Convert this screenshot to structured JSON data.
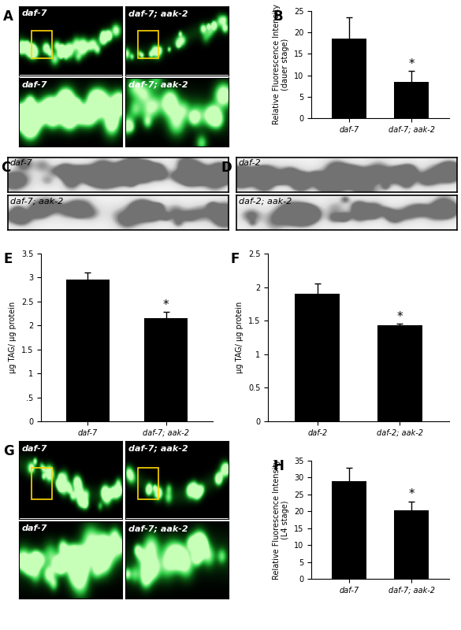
{
  "image_panels": [
    {
      "panel": "A",
      "type": "fluorescence",
      "images": [
        "daf-7",
        "daf-7; aak-2",
        "daf-7",
        "daf-7; aak-2"
      ]
    },
    {
      "panel": "C",
      "type": "brightfield",
      "images": [
        "daf-7",
        "daf-7; aak-2"
      ]
    },
    {
      "panel": "D",
      "type": "brightfield",
      "images": [
        "daf-2",
        "daf-2; aak-2"
      ]
    },
    {
      "panel": "G",
      "type": "fluorescence",
      "images": [
        "daf-7",
        "daf-7; aak-2",
        "daf-7",
        "daf-7; aak-2"
      ]
    }
  ],
  "chart_data": [
    {
      "panel": "B",
      "type": "bar",
      "categories": [
        "daf-7",
        "daf-7; aak-2"
      ],
      "values": [
        18.5,
        8.5
      ],
      "errors": [
        5,
        2.5
      ],
      "color": "#000000",
      "ylabel": "Relative Fluorescence Intensity\n(dauer stage)",
      "ylim": [
        0,
        25
      ],
      "yticks": [
        0,
        5,
        10,
        15,
        20,
        25
      ],
      "annotations": [
        {
          "category": "daf-7; aak-2",
          "text": "*"
        }
      ]
    },
    {
      "panel": "E",
      "type": "bar",
      "categories": [
        "daf-7",
        "daf-7; aak-2"
      ],
      "values": [
        2.95,
        2.15
      ],
      "errors": [
        0.16,
        0.13
      ],
      "color": "#000000",
      "ylabel": "µg TAG/ µg protein",
      "ylim": [
        0,
        3.5
      ],
      "yticks": [
        0,
        {
          "value": 0.5,
          "label": ".5"
        },
        1,
        1.5,
        2,
        2.5,
        3,
        3.5
      ],
      "annotations": [
        {
          "category": "daf-7; aak-2",
          "text": "*"
        }
      ]
    },
    {
      "panel": "F",
      "type": "bar",
      "categories": [
        "daf-2",
        "daf-2; aak-2"
      ],
      "values": [
        1.9,
        1.43
      ],
      "errors": [
        0.15,
        0.02
      ],
      "color": "#000000",
      "ylabel": "µg TAG/ µg protein",
      "ylim": [
        0,
        2.5
      ],
      "yticks": [
        0,
        0.5,
        1,
        1.5,
        2,
        2.5
      ],
      "annotations": [
        {
          "category": "daf-2; aak-2",
          "text": "*"
        }
      ]
    },
    {
      "panel": "H",
      "type": "bar",
      "categories": [
        "daf-7",
        "daf-7; aak-2"
      ],
      "values": [
        29,
        20.3
      ],
      "errors": [
        4,
        2.6
      ],
      "color": "#000000",
      "ylabel": "Relative Fluorescence Intensity\n(L4 stage)",
      "ylim": [
        0,
        35
      ],
      "yticks": [
        0,
        5,
        10,
        15,
        20,
        25,
        30,
        35
      ],
      "annotations": [
        {
          "category": "daf-7; aak-2",
          "text": "*"
        }
      ]
    }
  ]
}
